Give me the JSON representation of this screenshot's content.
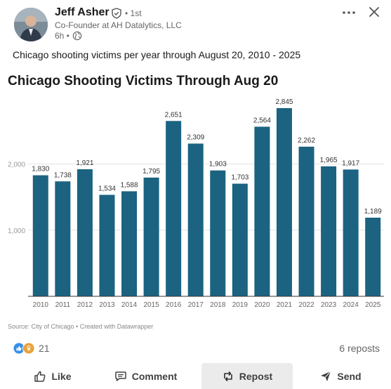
{
  "post": {
    "author": "Jeff Asher",
    "degree": "• 1st",
    "headline": "Co-Founder at AH Datalytics, LLC",
    "time": "6h •",
    "text": "Chicago shooting victims per year through August 20, 2010 - 2025"
  },
  "chart_data": {
    "type": "bar",
    "title": "Chicago Shooting Victims Through Aug 20",
    "categories": [
      "2010",
      "2011",
      "2012",
      "2013",
      "2014",
      "2015",
      "2016",
      "2017",
      "2018",
      "2019",
      "2020",
      "2021",
      "2022",
      "2023",
      "2024",
      "2025"
    ],
    "values": [
      1830,
      1738,
      1921,
      1534,
      1588,
      1795,
      2651,
      2309,
      1903,
      1703,
      2564,
      2845,
      2262,
      1965,
      1917,
      1189
    ],
    "value_labels": [
      "1,830",
      "1,738",
      "1,921",
      "1,534",
      "1,588",
      "1,795",
      "2,651",
      "2,309",
      "1,903",
      "1,703",
      "2,564",
      "2,845",
      "2,262",
      "1,965",
      "1,917",
      "1,189"
    ],
    "yticks": [
      {
        "value": 1000,
        "label": "1,000"
      },
      {
        "value": 2000,
        "label": "2,000"
      }
    ],
    "ylim": [
      0,
      2845
    ],
    "grid": true,
    "bar_color": "#1b6381",
    "source": "Source: City of Chicago • Created with Datawrapper"
  },
  "social": {
    "reaction_count": "21",
    "reposts": "6 reposts"
  },
  "actions": {
    "like": "Like",
    "comment": "Comment",
    "repost": "Repost",
    "send": "Send"
  },
  "icons": {
    "reactions": [
      "like-icon",
      "celebrate-icon"
    ],
    "more": "more-horizontal-icon",
    "close": "close-icon"
  }
}
